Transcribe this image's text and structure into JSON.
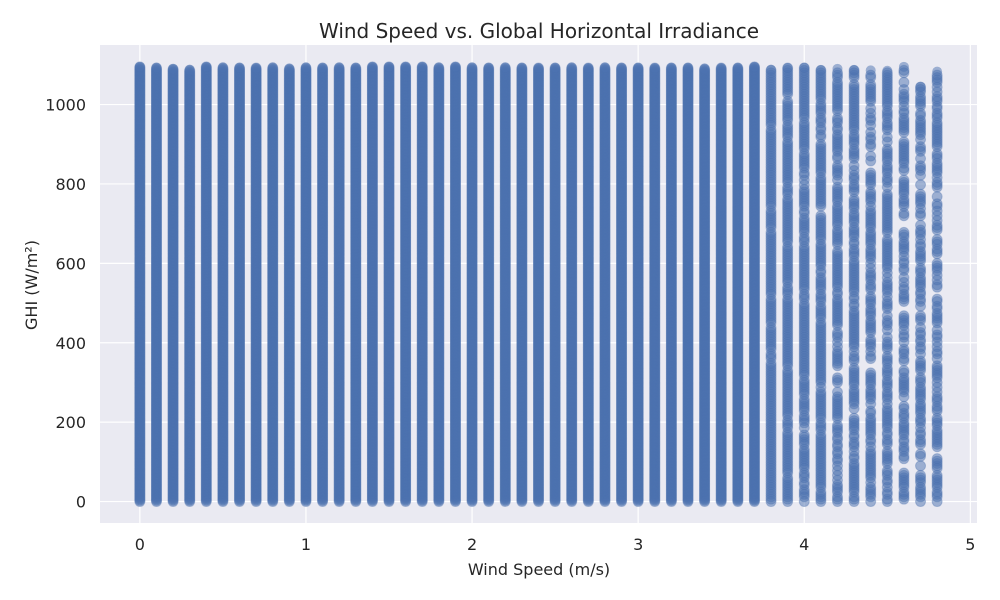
{
  "chart_data": {
    "type": "scatter",
    "title": "Wind Speed vs. Global Horizontal Irradiance",
    "xlabel": "Wind Speed (m/s)",
    "ylabel": "GHI (W/m²)",
    "xlim": [
      -0.24,
      5.04
    ],
    "ylim": [
      -54,
      1150
    ],
    "xticks": [
      0,
      1,
      2,
      3,
      4,
      5
    ],
    "yticks": [
      0,
      200,
      400,
      600,
      800,
      1000
    ],
    "grid": true,
    "background": "#eaeaf2",
    "point_color": "#4c72b0",
    "point_alpha": 0.5,
    "x_step": 0.1,
    "y_range": [
      0,
      1095
    ],
    "series": [
      {
        "x": [
          0.0,
          0.1,
          0.2,
          0.3,
          0.4,
          0.5,
          0.6,
          0.7,
          0.8,
          0.9,
          1.0,
          1.1,
          1.2,
          1.3,
          1.4,
          1.5,
          1.6,
          1.7,
          1.8,
          1.9,
          2.0,
          2.1,
          2.2,
          2.3,
          2.4,
          2.5,
          2.6,
          2.7,
          2.8,
          2.9,
          3.0,
          3.1,
          3.2,
          3.3,
          3.4,
          3.5,
          3.6,
          3.7,
          3.8,
          3.9,
          4.0,
          4.1,
          4.2,
          4.3,
          4.4,
          4.5,
          4.6,
          4.7,
          4.8
        ],
        "ymax": [
          1095,
          1093,
          1090,
          1088,
          1095,
          1094,
          1093,
          1092,
          1094,
          1091,
          1094,
          1093,
          1094,
          1093,
          1095,
          1095,
          1095,
          1095,
          1094,
          1095,
          1094,
          1093,
          1094,
          1093,
          1092,
          1093,
          1094,
          1092,
          1094,
          1093,
          1093,
          1092,
          1093,
          1093,
          1091,
          1092,
          1093,
          1095,
          1088,
          1092,
          1093,
          1087,
          1090,
          1087,
          1086,
          1085,
          1095,
          1045,
          1083
        ]
      }
    ]
  }
}
